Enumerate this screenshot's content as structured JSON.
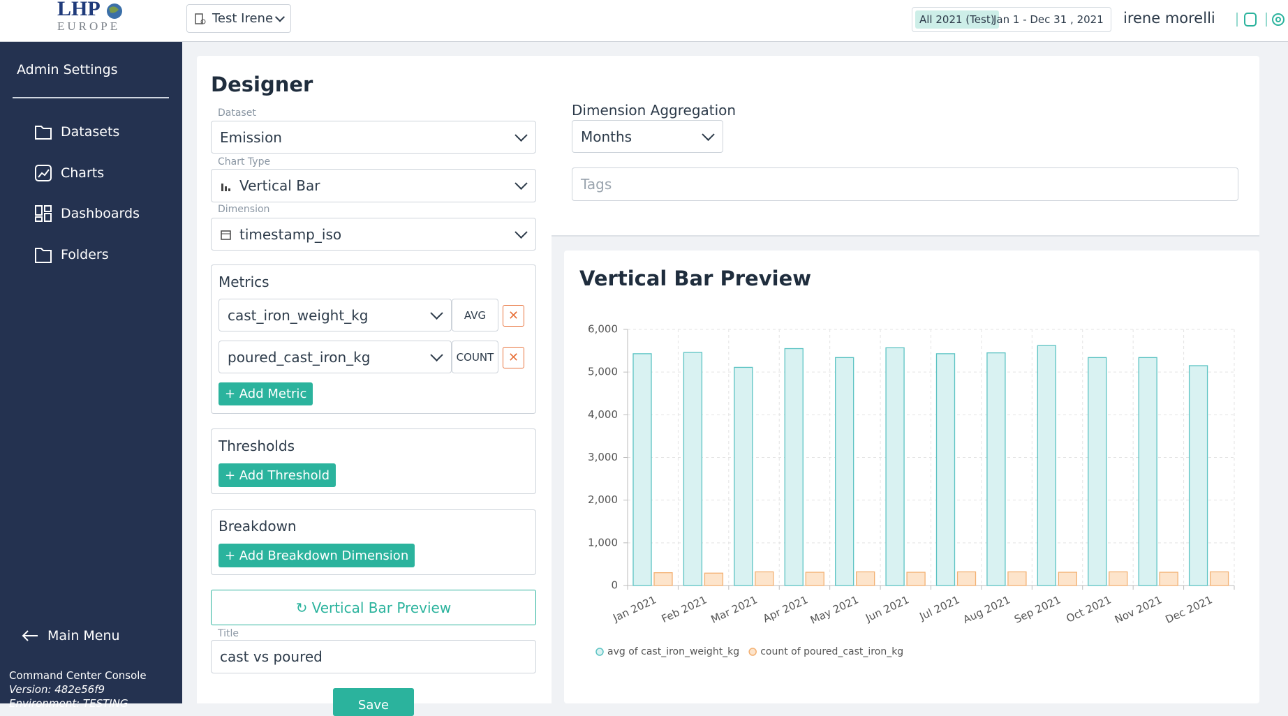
{
  "header": {
    "logo_top": "LHP",
    "logo_bottom": "EUROPE",
    "workspace": "Test Irene",
    "period_badge": "All 2021 (Test)",
    "date_range": "Jan 1 - Dec 31 , 2021",
    "user": "irene morelli"
  },
  "sidebar": {
    "title": "Admin Settings",
    "items": [
      "Datasets",
      "Charts",
      "Dashboards",
      "Folders"
    ],
    "main_menu": "Main Menu",
    "footer": [
      "Command Center Console",
      "Version: 482e56f9",
      "Environment: TESTING"
    ]
  },
  "designer": {
    "title": "Designer",
    "dataset_label": "Dataset",
    "dataset": "Emission",
    "chart_type_label": "Chart Type",
    "chart_type": "Vertical Bar",
    "dimension_label": "Dimension",
    "dimension": "timestamp_iso",
    "metrics_title": "Metrics",
    "metrics": [
      {
        "field": "cast_iron_weight_kg",
        "aggregation": "AVG"
      },
      {
        "field": "poured_cast_iron_kg",
        "aggregation": "COUNT"
      }
    ],
    "add_metric": "+ Add Metric",
    "thresholds_title": "Thresholds",
    "add_threshold": "+ Add Threshold",
    "breakdown_title": "Breakdown",
    "add_breakdown": "+ Add Breakdown Dimension",
    "preview_button": "Vertical Bar Preview",
    "title_label": "Title",
    "title_value": "cast vs poured",
    "save": "Save",
    "aggregation_label": "Dimension Aggregation",
    "aggregation": "Months",
    "tags_placeholder": "Tags"
  },
  "chart_data": {
    "type": "bar",
    "title": "Vertical Bar Preview",
    "categories": [
      "Jan 2021",
      "Feb 2021",
      "Mar 2021",
      "Apr 2021",
      "May 2021",
      "Jun 2021",
      "Jul 2021",
      "Aug 2021",
      "Sep 2021",
      "Oct 2021",
      "Nov 2021",
      "Dec 2021"
    ],
    "series": [
      {
        "name": "avg of cast_iron_weight_kg",
        "color": "#5cc3c3",
        "fill": "#d9f2f2",
        "values": [
          5430,
          5460,
          5110,
          5550,
          5340,
          5570,
          5430,
          5450,
          5620,
          5340,
          5340,
          5150
        ]
      },
      {
        "name": "count of poured_cast_iron_kg",
        "color": "#f3b173",
        "fill": "#fde4cb",
        "values": [
          300,
          290,
          320,
          310,
          320,
          310,
          320,
          320,
          310,
          320,
          310,
          320
        ]
      }
    ],
    "ylim": [
      0,
      6000
    ],
    "yticks": [
      0,
      {
        "value": 1000,
        "label": "1,000"
      },
      {
        "value": 2000,
        "label": "2,000"
      },
      {
        "value": 3000,
        "label": "3,000"
      },
      {
        "value": 4000,
        "label": "4,000"
      },
      {
        "value": 5000,
        "label": "5,000"
      },
      {
        "value": 6000,
        "label": "6,000"
      }
    ],
    "grid": true
  }
}
